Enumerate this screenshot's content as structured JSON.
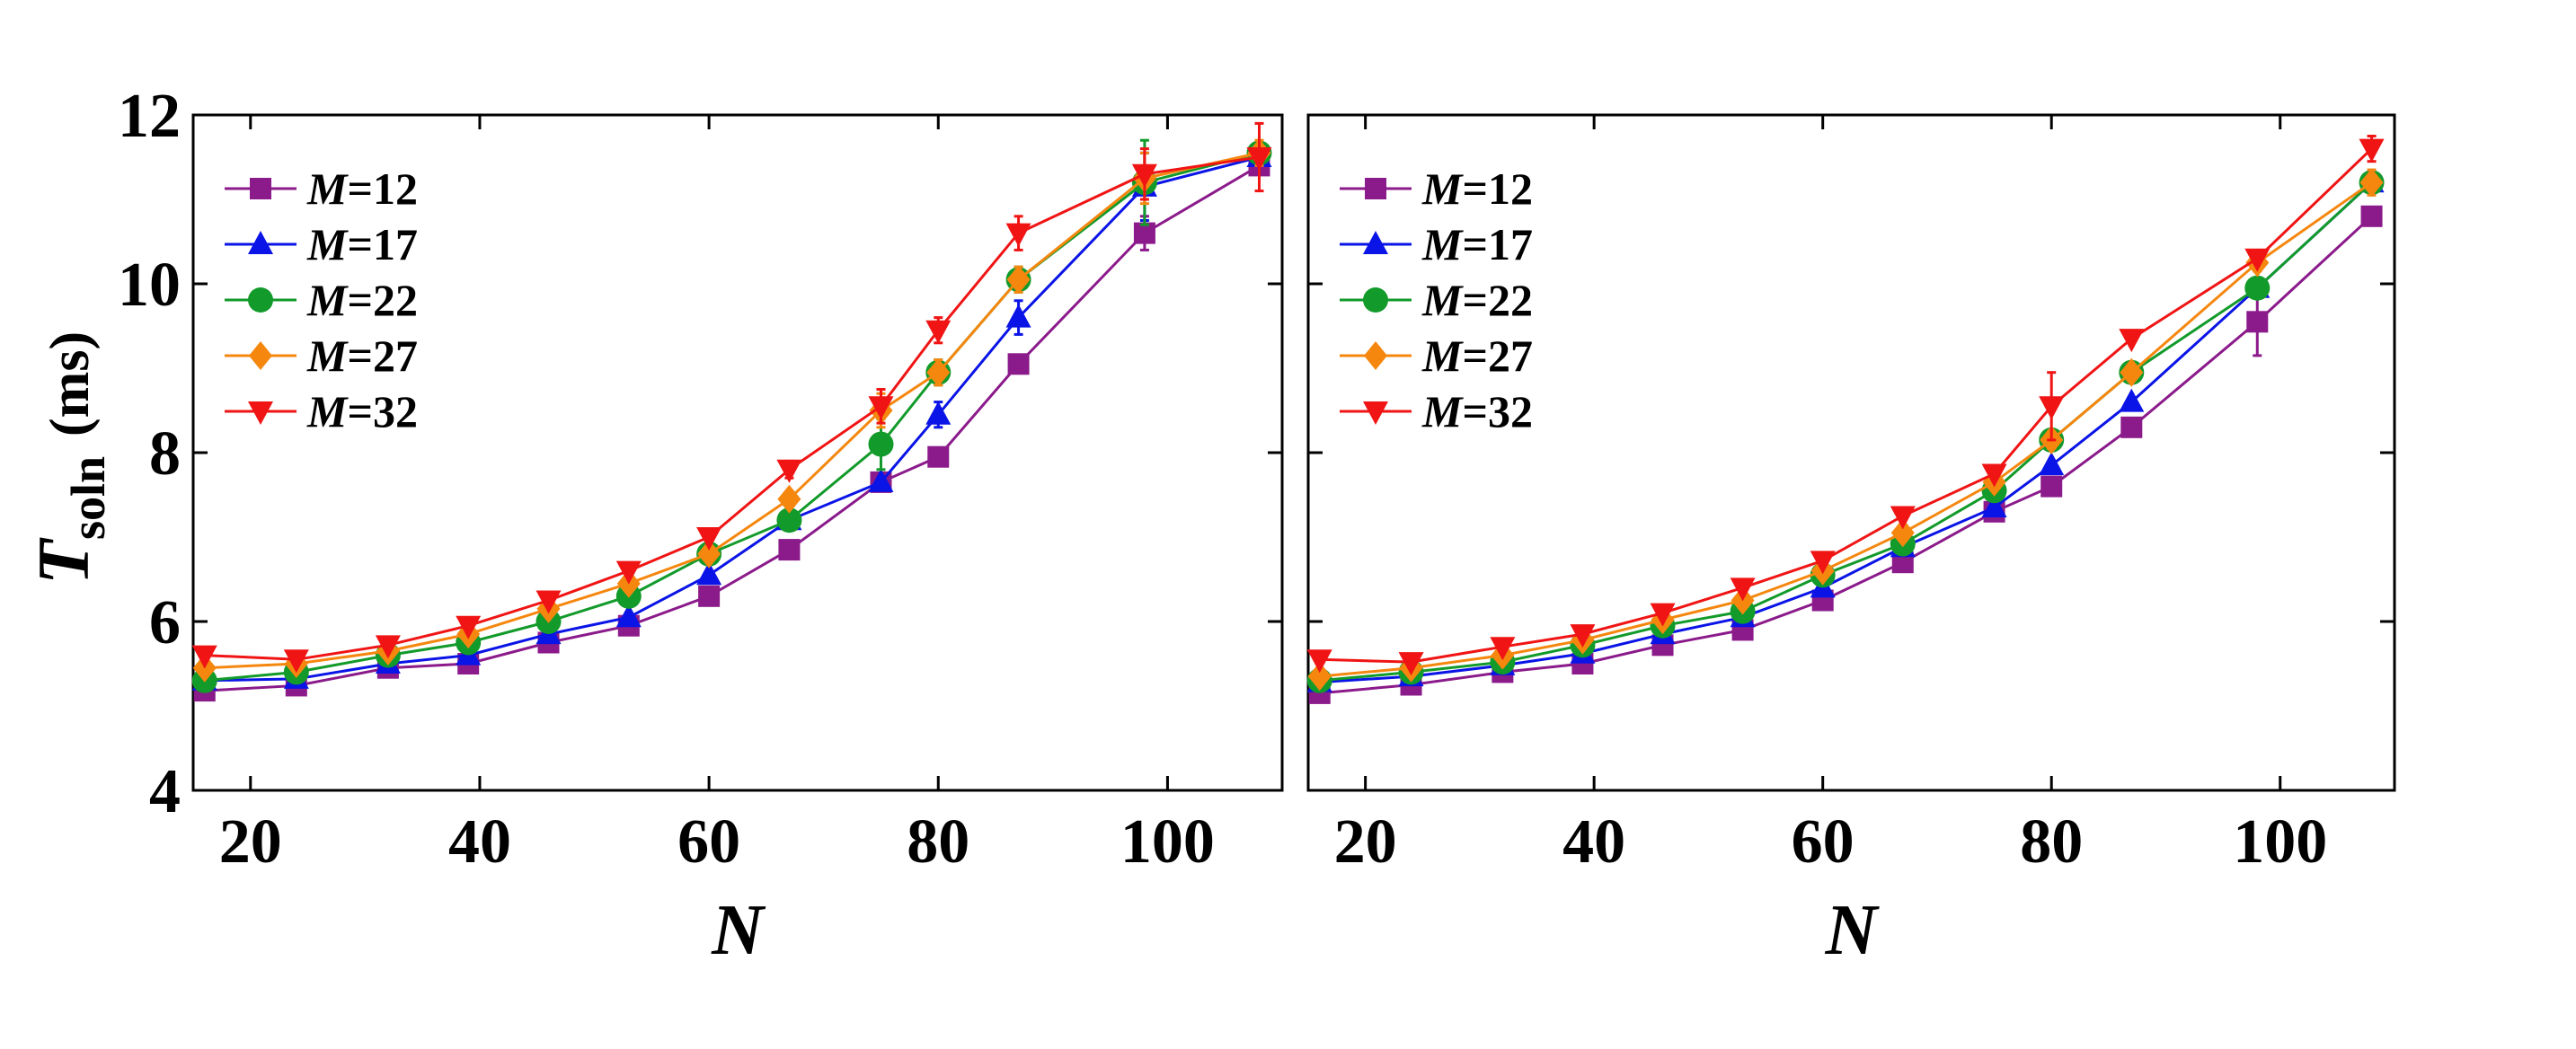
{
  "chart_data": [
    {
      "type": "line",
      "panel": "left",
      "xlabel": "N",
      "ylabel": {
        "main": "T",
        "subscript": "soln",
        "unit": "(ms)"
      },
      "xlim": [
        15,
        110
      ],
      "ylim": [
        4,
        12
      ],
      "xticks": [
        20,
        40,
        60,
        80,
        100
      ],
      "yticks": [
        4,
        6,
        8,
        10,
        12
      ],
      "legend_position": "top-left",
      "series": [
        {
          "name": "M=12",
          "var": "M",
          "eq": "=12",
          "color": "#8B1A8B",
          "marker": "square",
          "x": [
            16,
            24,
            32,
            39,
            46,
            53,
            60,
            67,
            75,
            80,
            87,
            98,
            108
          ],
          "y": [
            5.18,
            5.24,
            5.45,
            5.5,
            5.75,
            5.95,
            6.3,
            6.85,
            7.65,
            7.95,
            9.05,
            10.6,
            11.4
          ],
          "err": [
            0.05,
            0.05,
            0.05,
            0.05,
            0.05,
            0.05,
            0.05,
            0.05,
            0.05,
            0.05,
            0.1,
            0.2,
            0.1
          ]
        },
        {
          "name": "M=17",
          "var": "M",
          "eq": "=17",
          "color": "#0A14E6",
          "marker": "triangle-up",
          "x": [
            16,
            24,
            32,
            39,
            46,
            53,
            60,
            67,
            75,
            80,
            87,
            98,
            108
          ],
          "y": [
            5.3,
            5.32,
            5.5,
            5.6,
            5.85,
            6.05,
            6.55,
            7.2,
            7.65,
            8.45,
            9.6,
            11.15,
            11.5
          ],
          "err": [
            0.05,
            0.05,
            0.05,
            0.05,
            0.05,
            0.05,
            0.05,
            0.05,
            0.05,
            0.15,
            0.2,
            0.4,
            0.1
          ]
        },
        {
          "name": "M=22",
          "var": "M",
          "eq": "=22",
          "color": "#129A2A",
          "marker": "circle",
          "x": [
            16,
            24,
            32,
            39,
            46,
            53,
            60,
            67,
            75,
            80,
            87,
            98,
            108
          ],
          "y": [
            5.3,
            5.4,
            5.6,
            5.75,
            6.0,
            6.3,
            6.8,
            7.2,
            8.1,
            8.95,
            10.05,
            11.2,
            11.55
          ],
          "err": [
            0.05,
            0.05,
            0.05,
            0.05,
            0.05,
            0.05,
            0.05,
            0.05,
            0.3,
            0.15,
            0.15,
            0.5,
            0.1
          ]
        },
        {
          "name": "M=27",
          "var": "M",
          "eq": "=27",
          "color": "#F5870F",
          "marker": "diamond",
          "x": [
            16,
            24,
            32,
            39,
            46,
            53,
            60,
            67,
            75,
            80,
            87,
            98,
            108
          ],
          "y": [
            5.45,
            5.5,
            5.65,
            5.85,
            6.15,
            6.45,
            6.8,
            7.45,
            8.5,
            8.95,
            10.05,
            11.25,
            11.55
          ],
          "err": [
            0.05,
            0.05,
            0.05,
            0.05,
            0.05,
            0.05,
            0.05,
            0.05,
            0.2,
            0.15,
            0.15,
            0.3,
            0.15
          ]
        },
        {
          "name": "M=32",
          "var": "M",
          "eq": "=32",
          "color": "#F01414",
          "marker": "triangle-down",
          "x": [
            16,
            24,
            32,
            39,
            46,
            53,
            60,
            67,
            75,
            80,
            87,
            98,
            108
          ],
          "y": [
            5.6,
            5.55,
            5.72,
            5.95,
            6.25,
            6.6,
            7.0,
            7.8,
            8.55,
            9.45,
            10.6,
            11.3,
            11.5
          ],
          "err": [
            0.05,
            0.05,
            0.05,
            0.05,
            0.05,
            0.05,
            0.05,
            0.1,
            0.2,
            0.15,
            0.2,
            0.3,
            0.4
          ]
        }
      ]
    },
    {
      "type": "line",
      "panel": "right",
      "xlabel": "N",
      "xlim": [
        15,
        110
      ],
      "ylim": [
        4,
        12
      ],
      "xticks": [
        20,
        40,
        60,
        80,
        100
      ],
      "legend_position": "top-left",
      "series": [
        {
          "name": "M=12",
          "var": "M",
          "eq": "=12",
          "color": "#8B1A8B",
          "marker": "square",
          "x": [
            16,
            24,
            32,
            39,
            46,
            53,
            60,
            67,
            75,
            80,
            87,
            98,
            108
          ],
          "y": [
            5.15,
            5.25,
            5.4,
            5.5,
            5.72,
            5.9,
            6.25,
            6.7,
            7.3,
            7.6,
            8.3,
            9.55,
            10.8
          ],
          "err": [
            0.05,
            0.05,
            0.05,
            0.05,
            0.05,
            0.05,
            0.05,
            0.05,
            0.05,
            0.05,
            0.05,
            0.4,
            0.1
          ]
        },
        {
          "name": "M=17",
          "var": "M",
          "eq": "=17",
          "color": "#0A14E6",
          "marker": "triangle-up",
          "x": [
            16,
            24,
            32,
            39,
            46,
            53,
            60,
            67,
            75,
            80,
            87,
            98,
            108
          ],
          "y": [
            5.28,
            5.35,
            5.48,
            5.62,
            5.85,
            6.05,
            6.4,
            6.88,
            7.35,
            7.85,
            8.6,
            9.95,
            11.2
          ],
          "err": [
            0.05,
            0.05,
            0.05,
            0.05,
            0.05,
            0.05,
            0.05,
            0.05,
            0.05,
            0.05,
            0.05,
            0.1,
            0.1
          ]
        },
        {
          "name": "M=22",
          "var": "M",
          "eq": "=22",
          "color": "#129A2A",
          "marker": "circle",
          "x": [
            16,
            24,
            32,
            39,
            46,
            53,
            60,
            67,
            75,
            80,
            87,
            98,
            108
          ],
          "y": [
            5.3,
            5.4,
            5.52,
            5.72,
            5.95,
            6.12,
            6.55,
            6.92,
            7.55,
            8.15,
            8.95,
            9.95,
            11.2
          ],
          "err": [
            0.05,
            0.05,
            0.05,
            0.05,
            0.05,
            0.05,
            0.05,
            0.05,
            0.05,
            0.1,
            0.05,
            0.1,
            0.1
          ]
        },
        {
          "name": "M=27",
          "var": "M",
          "eq": "=27",
          "color": "#F5870F",
          "marker": "diamond",
          "x": [
            16,
            24,
            32,
            39,
            46,
            53,
            60,
            67,
            75,
            80,
            87,
            98,
            108
          ],
          "y": [
            5.35,
            5.45,
            5.6,
            5.78,
            6.02,
            6.25,
            6.6,
            7.05,
            7.65,
            8.15,
            8.95,
            10.25,
            11.2
          ],
          "err": [
            0.05,
            0.05,
            0.05,
            0.05,
            0.05,
            0.05,
            0.05,
            0.05,
            0.05,
            0.1,
            0.05,
            0.1,
            0.15
          ]
        },
        {
          "name": "M=32",
          "var": "M",
          "eq": "=32",
          "color": "#F01414",
          "marker": "triangle-down",
          "x": [
            16,
            24,
            32,
            39,
            46,
            53,
            60,
            67,
            75,
            80,
            87,
            98,
            108
          ],
          "y": [
            5.55,
            5.52,
            5.7,
            5.85,
            6.1,
            6.4,
            6.72,
            7.25,
            7.75,
            8.55,
            9.35,
            10.3,
            11.6
          ],
          "err": [
            0.05,
            0.05,
            0.05,
            0.05,
            0.05,
            0.05,
            0.05,
            0.05,
            0.05,
            0.4,
            0.05,
            0.05,
            0.15
          ]
        }
      ]
    }
  ]
}
